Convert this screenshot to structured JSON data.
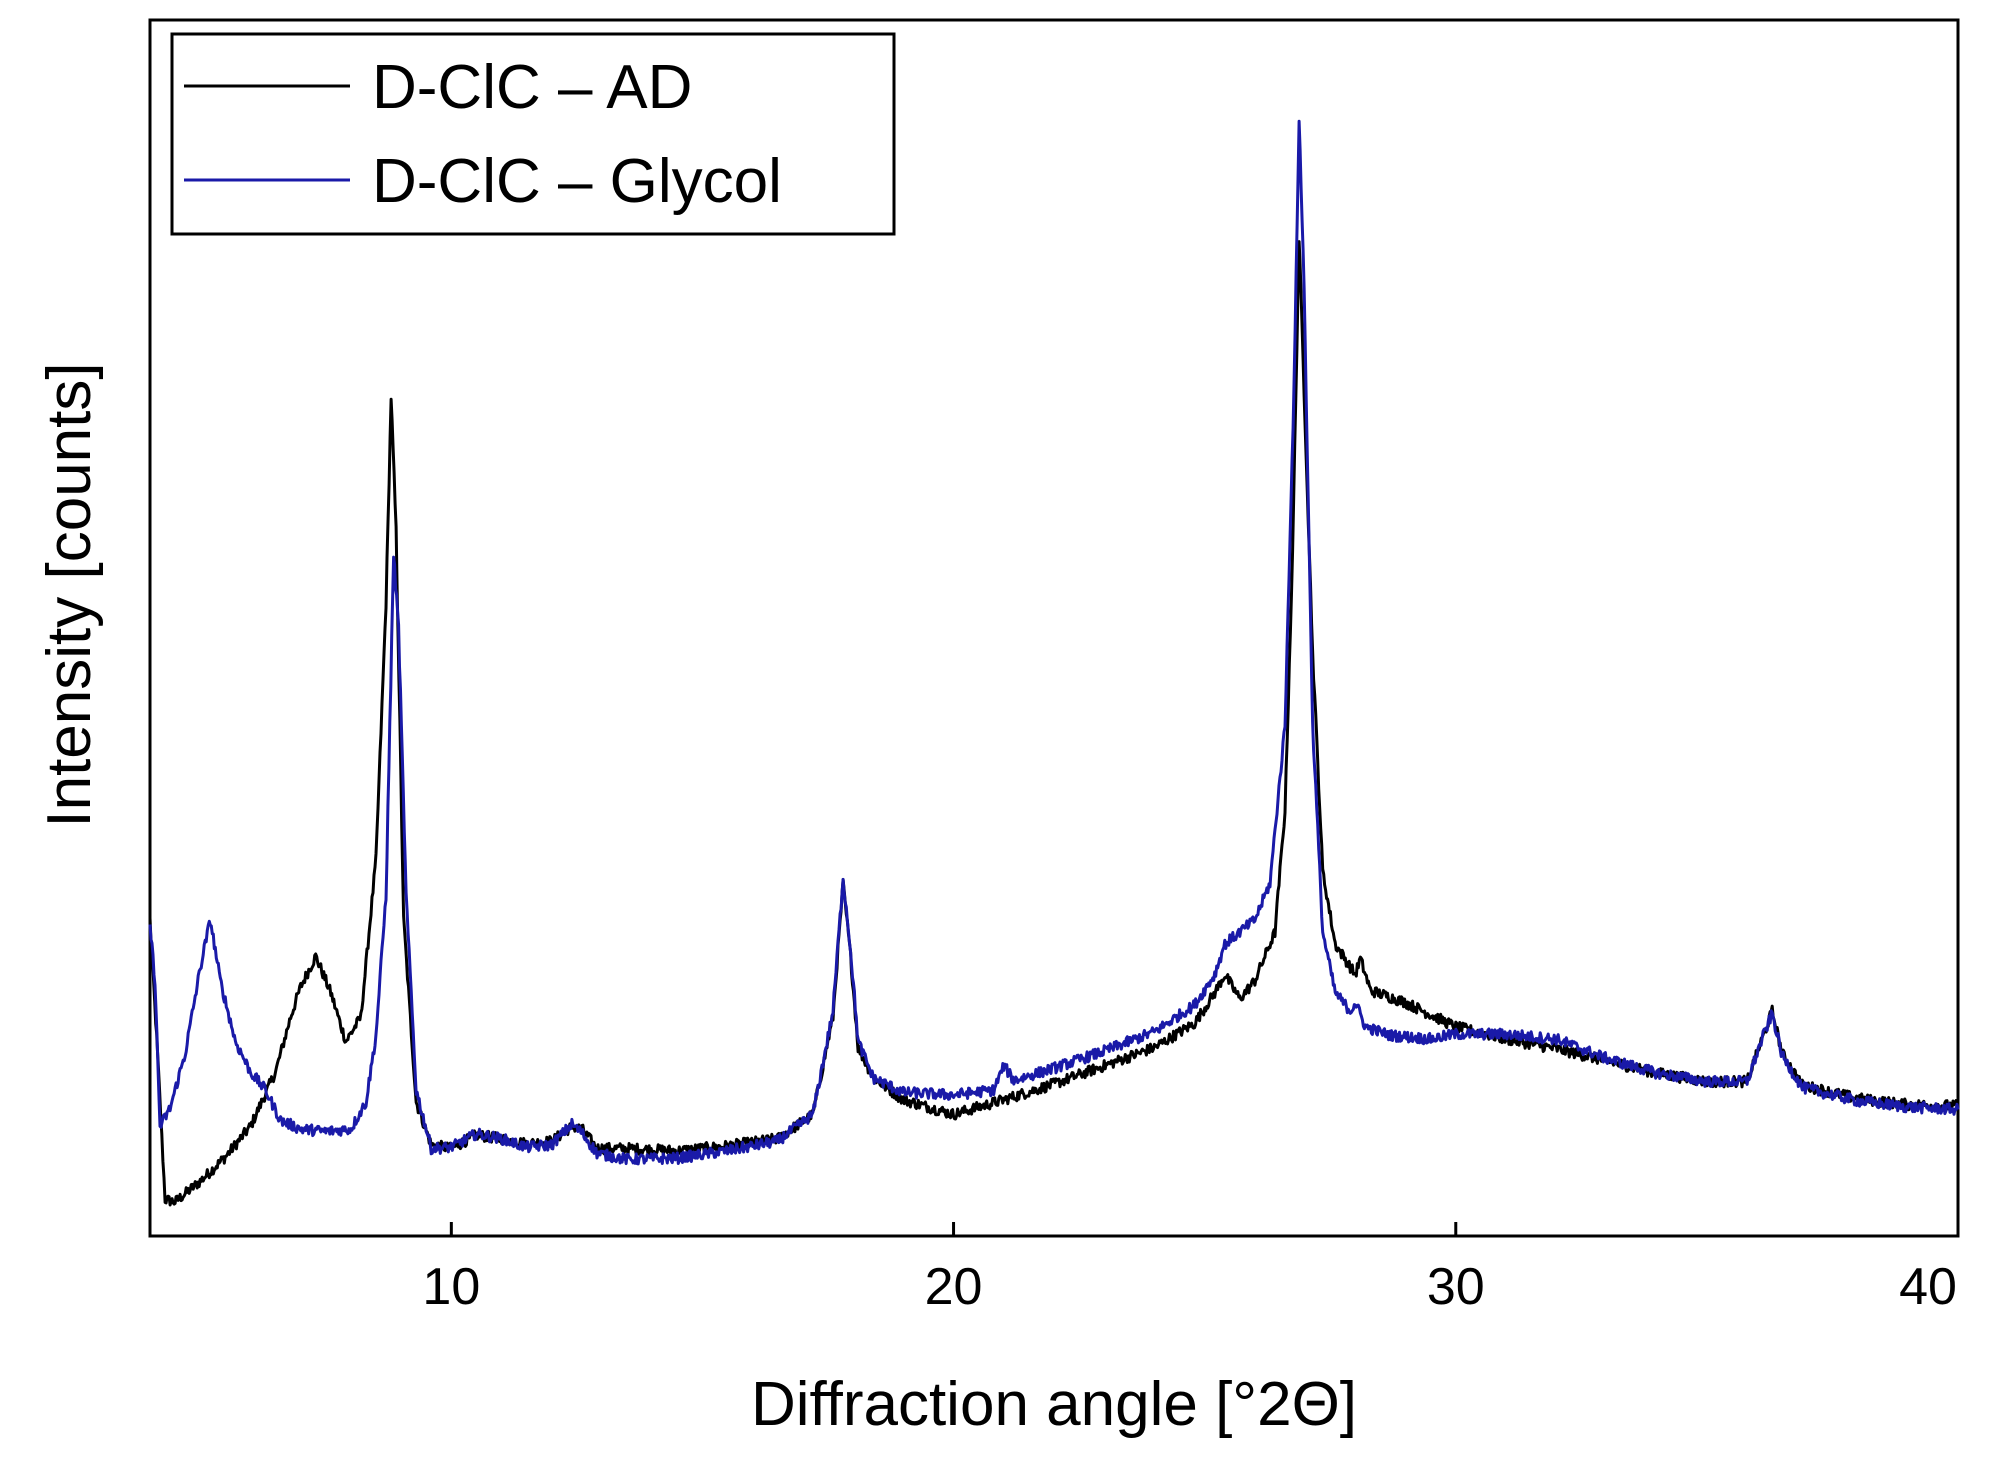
{
  "chart_data": {
    "type": "line",
    "title": "",
    "xlabel": "Diffraction angle [°2Θ]",
    "ylabel": "Intensity [counts]",
    "xlim": [
      4,
      40
    ],
    "ylim": [
      0,
      1000
    ],
    "xticks": [
      10,
      20,
      30,
      40
    ],
    "xtick_labels": [
      "10",
      "20",
      "30",
      "40"
    ],
    "yticks_shown": false,
    "grid": false,
    "legend_position": "top-left",
    "series": [
      {
        "name": "D-ClC – AD",
        "color": "#000000",
        "points": [
          [
            4.0,
            260
          ],
          [
            4.15,
            150
          ],
          [
            4.3,
            30
          ],
          [
            4.5,
            28
          ],
          [
            5.0,
            45
          ],
          [
            5.5,
            65
          ],
          [
            6.0,
            90
          ],
          [
            6.5,
            135
          ],
          [
            6.8,
            180
          ],
          [
            7.0,
            205
          ],
          [
            7.3,
            230
          ],
          [
            7.6,
            200
          ],
          [
            7.9,
            160
          ],
          [
            8.2,
            180
          ],
          [
            8.5,
            310
          ],
          [
            8.7,
            520
          ],
          [
            8.8,
            690
          ],
          [
            8.9,
            580
          ],
          [
            9.05,
            260
          ],
          [
            9.3,
            110
          ],
          [
            9.6,
            75
          ],
          [
            10.0,
            72
          ],
          [
            10.5,
            83
          ],
          [
            11.0,
            80
          ],
          [
            11.5,
            76
          ],
          [
            12.0,
            78
          ],
          [
            12.4,
            90
          ],
          [
            12.6,
            88
          ],
          [
            12.9,
            72
          ],
          [
            13.5,
            72
          ],
          [
            14.5,
            70
          ],
          [
            15.5,
            74
          ],
          [
            16.5,
            80
          ],
          [
            17.2,
            100
          ],
          [
            17.6,
            180
          ],
          [
            17.8,
            290
          ],
          [
            17.95,
            230
          ],
          [
            18.1,
            155
          ],
          [
            18.4,
            130
          ],
          [
            19.0,
            112
          ],
          [
            20.0,
            100
          ],
          [
            21.0,
            112
          ],
          [
            22.0,
            125
          ],
          [
            23.0,
            140
          ],
          [
            24.0,
            155
          ],
          [
            24.8,
            175
          ],
          [
            25.2,
            200
          ],
          [
            25.4,
            215
          ],
          [
            25.7,
            195
          ],
          [
            26.0,
            210
          ],
          [
            26.4,
            250
          ],
          [
            26.6,
            350
          ],
          [
            26.75,
            560
          ],
          [
            26.88,
            820
          ],
          [
            27.0,
            670
          ],
          [
            27.15,
            480
          ],
          [
            27.35,
            300
          ],
          [
            27.6,
            240
          ],
          [
            28.0,
            215
          ],
          [
            28.1,
            228
          ],
          [
            28.3,
            202
          ],
          [
            29.0,
            192
          ],
          [
            29.5,
            182
          ],
          [
            30.0,
            172
          ],
          [
            31.0,
            162
          ],
          [
            32.0,
            154
          ],
          [
            33.0,
            144
          ],
          [
            34.0,
            134
          ],
          [
            35.0,
            127
          ],
          [
            35.8,
            127
          ],
          [
            36.1,
            162
          ],
          [
            36.3,
            185
          ],
          [
            36.5,
            150
          ],
          [
            36.9,
            124
          ],
          [
            38.0,
            113
          ],
          [
            39.0,
            108
          ],
          [
            40.0,
            107
          ]
        ]
      },
      {
        "name": "D-ClC – Glycol",
        "color": "#1a1aa8",
        "points": [
          [
            4.0,
            255
          ],
          [
            4.1,
            210
          ],
          [
            4.2,
            90
          ],
          [
            4.4,
            105
          ],
          [
            4.7,
            150
          ],
          [
            5.0,
            220
          ],
          [
            5.2,
            260
          ],
          [
            5.4,
            210
          ],
          [
            5.7,
            160
          ],
          [
            6.0,
            135
          ],
          [
            6.3,
            120
          ],
          [
            6.6,
            95
          ],
          [
            7.0,
            88
          ],
          [
            7.5,
            86
          ],
          [
            8.0,
            88
          ],
          [
            8.3,
            110
          ],
          [
            8.5,
            165
          ],
          [
            8.7,
            280
          ],
          [
            8.85,
            560
          ],
          [
            8.95,
            500
          ],
          [
            9.1,
            280
          ],
          [
            9.3,
            120
          ],
          [
            9.6,
            72
          ],
          [
            10.0,
            73
          ],
          [
            10.5,
            84
          ],
          [
            11.0,
            80
          ],
          [
            11.5,
            73
          ],
          [
            12.0,
            75
          ],
          [
            12.4,
            92
          ],
          [
            12.6,
            85
          ],
          [
            12.9,
            68
          ],
          [
            13.5,
            63
          ],
          [
            14.5,
            64
          ],
          [
            15.5,
            70
          ],
          [
            16.5,
            78
          ],
          [
            17.2,
            100
          ],
          [
            17.6,
            185
          ],
          [
            17.8,
            295
          ],
          [
            17.95,
            235
          ],
          [
            18.1,
            160
          ],
          [
            18.4,
            130
          ],
          [
            19.0,
            118
          ],
          [
            20.0,
            116
          ],
          [
            20.8,
            120
          ],
          [
            21.0,
            140
          ],
          [
            21.2,
            128
          ],
          [
            22.0,
            138
          ],
          [
            23.0,
            152
          ],
          [
            24.0,
            168
          ],
          [
            24.8,
            190
          ],
          [
            25.2,
            215
          ],
          [
            25.4,
            240
          ],
          [
            25.7,
            250
          ],
          [
            26.0,
            260
          ],
          [
            26.3,
            290
          ],
          [
            26.6,
            420
          ],
          [
            26.78,
            700
          ],
          [
            26.88,
            920
          ],
          [
            26.98,
            780
          ],
          [
            27.15,
            420
          ],
          [
            27.35,
            250
          ],
          [
            27.6,
            200
          ],
          [
            27.9,
            185
          ],
          [
            28.0,
            192
          ],
          [
            28.2,
            172
          ],
          [
            28.7,
            165
          ],
          [
            29.5,
            162
          ],
          [
            30.0,
            166
          ],
          [
            31.0,
            166
          ],
          [
            32.0,
            162
          ],
          [
            33.0,
            146
          ],
          [
            34.0,
            134
          ],
          [
            35.0,
            127
          ],
          [
            35.8,
            127
          ],
          [
            36.1,
            162
          ],
          [
            36.3,
            183
          ],
          [
            36.5,
            148
          ],
          [
            36.9,
            122
          ],
          [
            38.0,
            111
          ],
          [
            39.0,
            106
          ],
          [
            40.0,
            104
          ]
        ]
      }
    ]
  }
}
